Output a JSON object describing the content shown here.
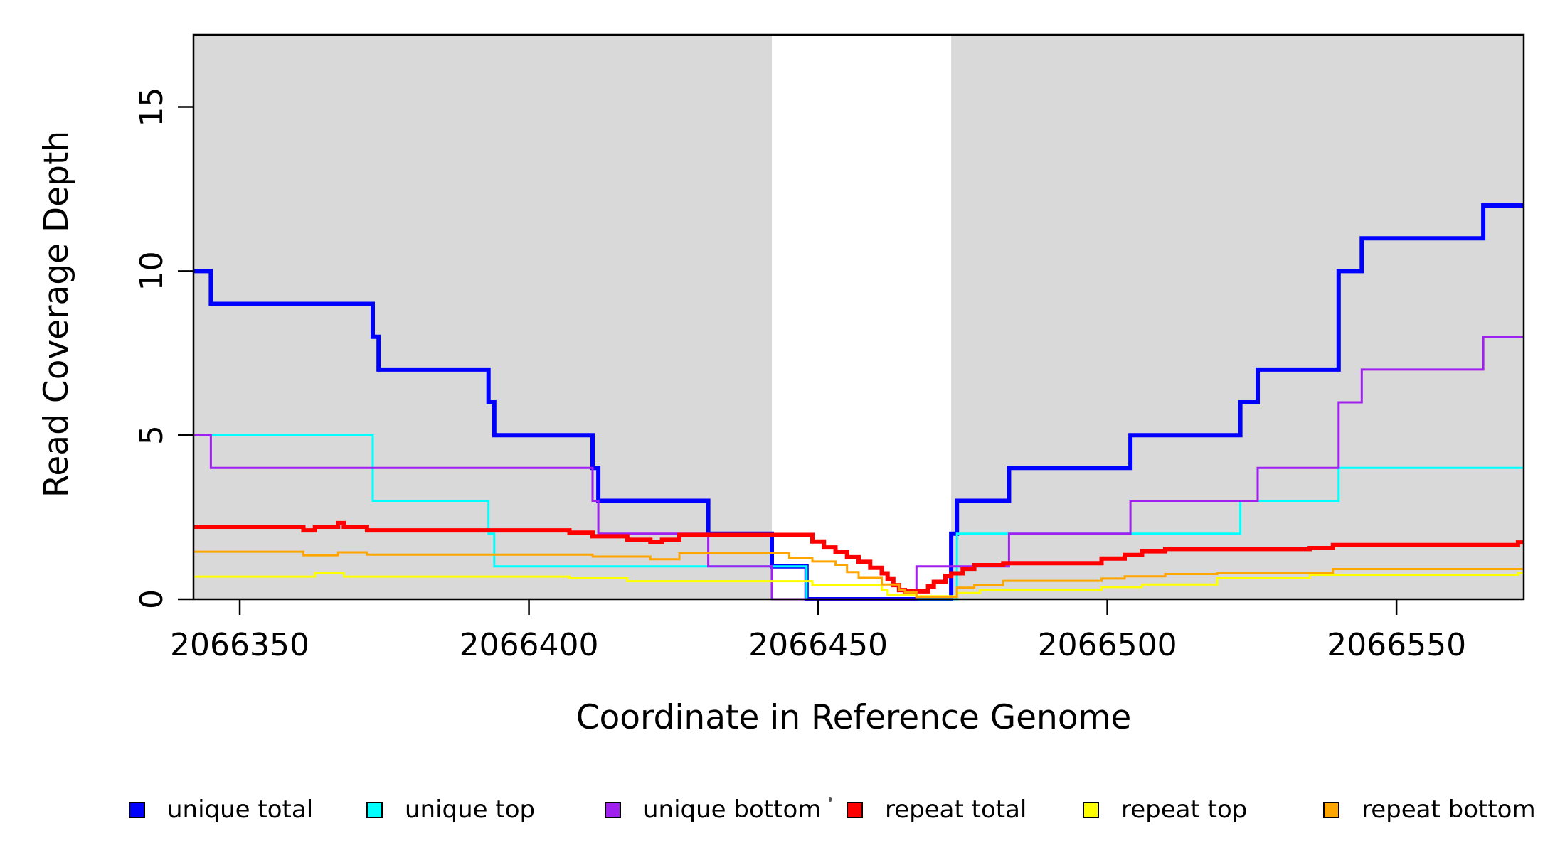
{
  "chart_data": {
    "type": "line",
    "subtype": "step-coverage-plot",
    "title": "",
    "xlabel": "Coordinate in Reference Genome",
    "ylabel": "Read Coverage Depth",
    "xlim": [
      2066342,
      2066572
    ],
    "ylim": [
      0,
      17.2
    ],
    "grid": false,
    "legend_position": "bottom",
    "x_ticks": [
      {
        "value": 2066350,
        "label": "2066350"
      },
      {
        "value": 2066400,
        "label": "2066400"
      },
      {
        "value": 2066450,
        "label": "2066450"
      },
      {
        "value": 2066500,
        "label": "2066500"
      },
      {
        "value": 2066550,
        "label": "2066550"
      }
    ],
    "y_ticks": [
      {
        "value": 0,
        "label": "0"
      },
      {
        "value": 5,
        "label": "5"
      },
      {
        "value": 10,
        "label": "10"
      },
      {
        "value": 15,
        "label": "15"
      }
    ],
    "shaded_bands": {
      "color": "#D9D9D9",
      "regions": [
        {
          "x0": 2066342,
          "x1": 2066442
        },
        {
          "x0": 2066473,
          "x1": 2066572
        }
      ]
    },
    "series": [
      {
        "name": "unique total",
        "color": "#0000FF",
        "line_width": 6,
        "steps": [
          [
            2066342,
            10
          ],
          [
            2066345,
            9
          ],
          [
            2066373,
            8
          ],
          [
            2066374,
            7
          ],
          [
            2066393,
            6
          ],
          [
            2066394,
            5
          ],
          [
            2066411,
            4
          ],
          [
            2066412,
            3
          ],
          [
            2066431,
            2
          ],
          [
            2066442,
            1
          ],
          [
            2066448,
            0
          ],
          [
            2066473,
            2
          ],
          [
            2066474,
            3
          ],
          [
            2066483,
            4
          ],
          [
            2066504,
            5
          ],
          [
            2066523,
            6
          ],
          [
            2066526,
            7
          ],
          [
            2066540,
            10
          ],
          [
            2066544,
            11
          ],
          [
            2066565,
            12
          ]
        ]
      },
      {
        "name": "unique top",
        "color": "#00FFFF",
        "line_width": 3,
        "steps": [
          [
            2066342,
            5
          ],
          [
            2066373,
            3
          ],
          [
            2066393,
            2
          ],
          [
            2066394,
            1
          ],
          [
            2066448,
            0
          ],
          [
            2066474,
            2
          ],
          [
            2066523,
            3
          ],
          [
            2066540,
            4
          ]
        ]
      },
      {
        "name": "unique bottom",
        "color": "#A020F0",
        "line_width": 3,
        "steps": [
          [
            2066342,
            5
          ],
          [
            2066345,
            4
          ],
          [
            2066411,
            3
          ],
          [
            2066412,
            2
          ],
          [
            2066431,
            1
          ],
          [
            2066442,
            0
          ],
          [
            2066467,
            1
          ],
          [
            2066483,
            2
          ],
          [
            2066504,
            3
          ],
          [
            2066526,
            4
          ],
          [
            2066540,
            6
          ],
          [
            2066544,
            7
          ],
          [
            2066565,
            8
          ]
        ]
      },
      {
        "name": "repeat total",
        "color": "#FF0000",
        "line_width": 6,
        "steps": [
          [
            2066342,
            2.21
          ],
          [
            2066361,
            2.1
          ],
          [
            2066363,
            2.21
          ],
          [
            2066367,
            2.32
          ],
          [
            2066368,
            2.21
          ],
          [
            2066372,
            2.1
          ],
          [
            2066407,
            2.03
          ],
          [
            2066411,
            1.92
          ],
          [
            2066417,
            1.81
          ],
          [
            2066421,
            1.74
          ],
          [
            2066423,
            1.81
          ],
          [
            2066426,
            1.96
          ],
          [
            2066449,
            1.76
          ],
          [
            2066451,
            1.58
          ],
          [
            2066453,
            1.43
          ],
          [
            2066455,
            1.28
          ],
          [
            2066457,
            1.14
          ],
          [
            2066459,
            0.96
          ],
          [
            2066461,
            0.79
          ],
          [
            2066462,
            0.61
          ],
          [
            2066463,
            0.43
          ],
          [
            2066464,
            0.28
          ],
          [
            2066465,
            0.24
          ],
          [
            2066469,
            0.39
          ],
          [
            2066470,
            0.53
          ],
          [
            2066472,
            0.71
          ],
          [
            2066473,
            0.79
          ],
          [
            2066475,
            0.93
          ],
          [
            2066477,
            1.04
          ],
          [
            2066482,
            1.1
          ],
          [
            2066499,
            1.24
          ],
          [
            2066503,
            1.35
          ],
          [
            2066506,
            1.46
          ],
          [
            2066510,
            1.53
          ],
          [
            2066535,
            1.56
          ],
          [
            2066539,
            1.65
          ],
          [
            2066571,
            1.73
          ]
        ]
      },
      {
        "name": "repeat top",
        "color": "#FFFF00",
        "line_width": 3,
        "steps": [
          [
            2066342,
            0.69
          ],
          [
            2066363,
            0.8
          ],
          [
            2066368,
            0.69
          ],
          [
            2066407,
            0.64
          ],
          [
            2066417,
            0.55
          ],
          [
            2066449,
            0.43
          ],
          [
            2066461,
            0.28
          ],
          [
            2066462,
            0.14
          ],
          [
            2066467,
            0.09
          ],
          [
            2066474,
            0.19
          ],
          [
            2066478,
            0.27
          ],
          [
            2066499,
            0.37
          ],
          [
            2066506,
            0.45
          ],
          [
            2066519,
            0.64
          ],
          [
            2066535,
            0.74
          ],
          [
            2066571,
            0.8
          ]
        ]
      },
      {
        "name": "repeat bottom",
        "color": "#FFA500",
        "line_width": 3,
        "steps": [
          [
            2066342,
            1.45
          ],
          [
            2066361,
            1.34
          ],
          [
            2066367,
            1.43
          ],
          [
            2066372,
            1.36
          ],
          [
            2066411,
            1.3
          ],
          [
            2066421,
            1.22
          ],
          [
            2066426,
            1.4
          ],
          [
            2066445,
            1.26
          ],
          [
            2066449,
            1.15
          ],
          [
            2066453,
            1.05
          ],
          [
            2066455,
            0.83
          ],
          [
            2066457,
            0.65
          ],
          [
            2066461,
            0.45
          ],
          [
            2066464,
            0.28
          ],
          [
            2066465,
            0.21
          ],
          [
            2066467,
            0.07
          ],
          [
            2066474,
            0.35
          ],
          [
            2066477,
            0.43
          ],
          [
            2066482,
            0.56
          ],
          [
            2066499,
            0.63
          ],
          [
            2066503,
            0.7
          ],
          [
            2066510,
            0.77
          ],
          [
            2066519,
            0.8
          ],
          [
            2066539,
            0.92
          ]
        ]
      }
    ],
    "legend": [
      {
        "label": "unique total",
        "color": "#0000FF"
      },
      {
        "label": "unique top",
        "color": "#00FFFF"
      },
      {
        "label": "unique bottom",
        "color": "#A020F0"
      },
      {
        "label": "repeat total",
        "color": "#FF0000"
      },
      {
        "label": "repeat top",
        "color": "#FFFF00"
      },
      {
        "label": "repeat bottom",
        "color": "#FFA500"
      }
    ]
  }
}
